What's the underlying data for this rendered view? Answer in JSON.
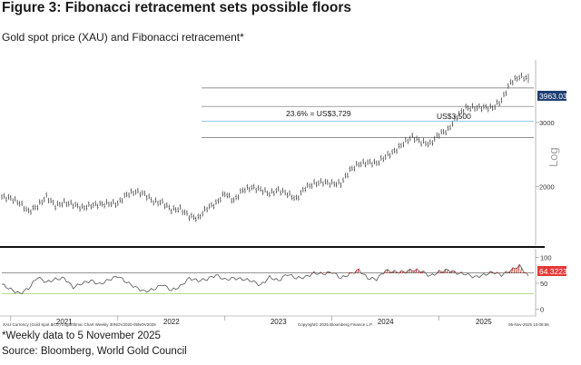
{
  "figure": {
    "title": "Figure 3: Fibonacci retracement sets possible floors",
    "subtitle": "Gold spot price (XAU) and Fibonacci retracement*",
    "footnote": "*Weekly data to 5 November 2025",
    "source": "Source: Bloomberg, World Gold Council"
  },
  "colors": {
    "price_bars": "#3a3a3a",
    "rsi_line": "#555555",
    "rsi_overbought": "#c62828",
    "fib_line": "#6e6e6e",
    "fib_blue_line": "#5aa7d8",
    "price_label_bg": "#1f3f73",
    "rsi_label_bg": "#e53935",
    "divider": "#111111"
  },
  "chart_data": [
    {
      "type": "line",
      "subtype": "ohlc_weekly",
      "title": "Gold spot price (XAU) and Fibonacci retracement*",
      "scale": "log",
      "scale_label": "Log",
      "ylim": [
        1400,
        4450
      ],
      "y_ticks": [
        2000,
        3000
      ],
      "y_tick_labels": [
        "2000",
        "3000"
      ],
      "x": [
        "2020-12",
        "2021-01",
        "2021-02",
        "2021-03",
        "2021-04",
        "2021-05",
        "2021-06",
        "2021-07",
        "2021-08",
        "2021-09",
        "2021-10",
        "2021-11",
        "2021-12",
        "2022-01",
        "2022-02",
        "2022-03",
        "2022-04",
        "2022-05",
        "2022-06",
        "2022-07",
        "2022-08",
        "2022-09",
        "2022-10",
        "2022-11",
        "2022-12",
        "2023-01",
        "2023-02",
        "2023-03",
        "2023-04",
        "2023-05",
        "2023-06",
        "2023-07",
        "2023-08",
        "2023-09",
        "2023-10",
        "2023-11",
        "2023-12",
        "2024-01",
        "2024-02",
        "2024-03",
        "2024-04",
        "2024-05",
        "2024-06",
        "2024-07",
        "2024-08",
        "2024-09",
        "2024-10",
        "2024-11",
        "2024-12",
        "2025-01",
        "2025-02",
        "2025-03",
        "2025-04",
        "2025-05",
        "2025-06",
        "2025-07",
        "2025-08",
        "2025-09",
        "2025-10",
        "2025-11"
      ],
      "series": [
        {
          "values": [
            1875,
            1860,
            1805,
            1710,
            1770,
            1880,
            1775,
            1810,
            1790,
            1750,
            1780,
            1790,
            1800,
            1800,
            1905,
            1940,
            1910,
            1820,
            1810,
            1730,
            1740,
            1660,
            1640,
            1750,
            1800,
            1920,
            1830,
            1960,
            1990,
            1965,
            1915,
            1960,
            1915,
            1850,
            1990,
            2040,
            2060,
            2040,
            2040,
            2220,
            2310,
            2330,
            2320,
            2420,
            2500,
            2630,
            2740,
            2650,
            2620,
            2790,
            2860,
            3120,
            3290,
            3290,
            3300,
            3290,
            3450,
            3860,
            4000,
            3963
          ]
        }
      ],
      "last_value_label": "3963.03",
      "annotations": [
        {
          "text": "23.6% = US$3,729",
          "y": 3729
        },
        {
          "text": "US$3,500",
          "y": 3500
        }
      ],
      "fibonacci_levels": [
        3729,
        3320,
        3020,
        2730
      ]
    },
    {
      "type": "line",
      "subtype": "rsi_14",
      "ylim": [
        -10,
        110
      ],
      "y_ticks": [
        0,
        50,
        100
      ],
      "y_tick_labels": [
        "0",
        "50",
        "100"
      ],
      "reference_lines": [
        70,
        30
      ],
      "values": [
        48,
        38,
        30,
        40,
        62,
        52,
        58,
        60,
        42,
        50,
        55,
        48,
        57,
        64,
        52,
        42,
        34,
        38,
        48,
        36,
        44,
        60,
        55,
        58,
        66,
        57,
        60,
        58,
        55,
        46,
        62,
        55,
        68,
        60,
        62,
        70,
        68,
        72,
        60,
        68,
        76,
        60,
        58,
        75,
        72,
        72,
        76,
        74,
        64,
        72,
        76,
        70,
        68,
        62,
        66,
        72,
        66,
        75,
        84,
        64.3223
      ],
      "last_value_label": "64.3223"
    }
  ],
  "x_axis": {
    "year_labels": [
      "2021",
      "2022",
      "2023",
      "2024",
      "2025"
    ]
  },
  "footer_small": {
    "left": "XAU Currency (Gold Spot   $/Oz)  Logarithmic Chart Weekly 30NOV2020-05NOV2025",
    "center": "Copyright© 2025 Bloomberg Finance L.P.",
    "right": "05-Nov-2025 10:08:56"
  }
}
